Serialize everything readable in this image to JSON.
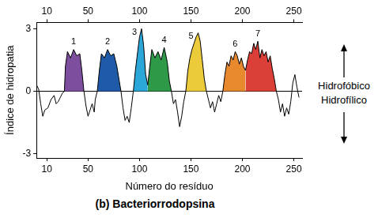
{
  "chart_data": {
    "type": "line",
    "title": "(b) Bacteriorrodopsina",
    "x_label": "Número do resíduo",
    "y_label": "Índice de hidropatia",
    "x": [
      0,
      2,
      4,
      6,
      8,
      11,
      14,
      17,
      19,
      21,
      23,
      25,
      27,
      28,
      30,
      33,
      36,
      39,
      42,
      44,
      46,
      48,
      50,
      52,
      54,
      56,
      57,
      59,
      61,
      63,
      66,
      69,
      72,
      75,
      78,
      80,
      82,
      84,
      86,
      88,
      90,
      92,
      94,
      96,
      98,
      100,
      102,
      104,
      106,
      108,
      110,
      112,
      115,
      118,
      121,
      124,
      127,
      129,
      131,
      133,
      135,
      137,
      139,
      141,
      143,
      145,
      147,
      149,
      151,
      153,
      155,
      157,
      159,
      161,
      163,
      165,
      167,
      169,
      171,
      173,
      175,
      177,
      179,
      181,
      183,
      185,
      187,
      189,
      191,
      193,
      195,
      197,
      199,
      201,
      203,
      205,
      207,
      209,
      211,
      213,
      215,
      217,
      219,
      221,
      223,
      225,
      227,
      229,
      231,
      233,
      235,
      237,
      239,
      241,
      243,
      245,
      247,
      249,
      251,
      253,
      255
    ],
    "values": [
      0.3,
      0.1,
      -0.6,
      -1.2,
      -0.9,
      -0.8,
      -0.4,
      -0.2,
      -0.6,
      -0.5,
      -0.3,
      -0.1,
      0,
      1.2,
      1.9,
      1.6,
      2.0,
      1.7,
      1.8,
      1.0,
      0,
      -0.7,
      -1.2,
      -0.9,
      -0.6,
      -1.0,
      -0.4,
      0,
      1.0,
      1.8,
      1.6,
      2.0,
      1.7,
      1.8,
      1.2,
      0.6,
      0,
      -0.8,
      -1.4,
      -1.2,
      -1.5,
      -0.8,
      0,
      1.0,
      1.8,
      2.6,
      3.0,
      2.2,
      0.8,
      0.3,
      1.2,
      2.0,
      1.6,
      1.9,
      1.5,
      2.1,
      1.4,
      0.5,
      0,
      -0.6,
      -0.4,
      -1.0,
      -1.7,
      -1.2,
      -0.5,
      0,
      1.0,
      1.6,
      2.0,
      2.3,
      2.6,
      2.8,
      2.4,
      1.5,
      0.6,
      0,
      -0.4,
      -0.8,
      -0.5,
      -1.0,
      -0.6,
      -0.2,
      -0.5,
      0,
      0.8,
      1.4,
      1.2,
      1.7,
      1.5,
      1.9,
      1.7,
      1.3,
      1.6,
      1.2,
      1.0,
      1.5,
      1.9,
      1.8,
      2.3,
      2.0,
      2.4,
      1.6,
      2.0,
      1.7,
      1.9,
      1.4,
      1.7,
      1.1,
      0.6,
      0,
      -0.4,
      -1.0,
      -0.6,
      -1.2,
      -0.8,
      -1.1,
      -0.5,
      0.4,
      0.8,
      0.2,
      -0.3
    ],
    "color": "#000000",
    "xlim": [
      0,
      258
    ],
    "xticks": [
      10,
      50,
      100,
      150,
      200,
      250
    ],
    "ylim": [
      -3.2,
      3.3
    ],
    "yticks": [
      -3,
      0,
      3
    ],
    "grid": true,
    "regions": [
      {
        "label": "1",
        "start": 27,
        "end": 46,
        "color": "#7d4e9e"
      },
      {
        "label": "2",
        "start": 59,
        "end": 82,
        "color": "#1f5aa8"
      },
      {
        "label": "3",
        "start": 94,
        "end": 108,
        "color": "#2ba6d8"
      },
      {
        "label": "4",
        "start": 108,
        "end": 131,
        "color": "#2e9a47"
      },
      {
        "label": "5",
        "start": 145,
        "end": 165,
        "color": "#eccb3a"
      },
      {
        "label": "6",
        "start": 181,
        "end": 203,
        "color": "#e8892e"
      },
      {
        "label": "7",
        "start": 203,
        "end": 233,
        "color": "#dc3f38"
      }
    ],
    "annotations": [
      "Hidrofóbico",
      "Hidrofílico"
    ]
  }
}
